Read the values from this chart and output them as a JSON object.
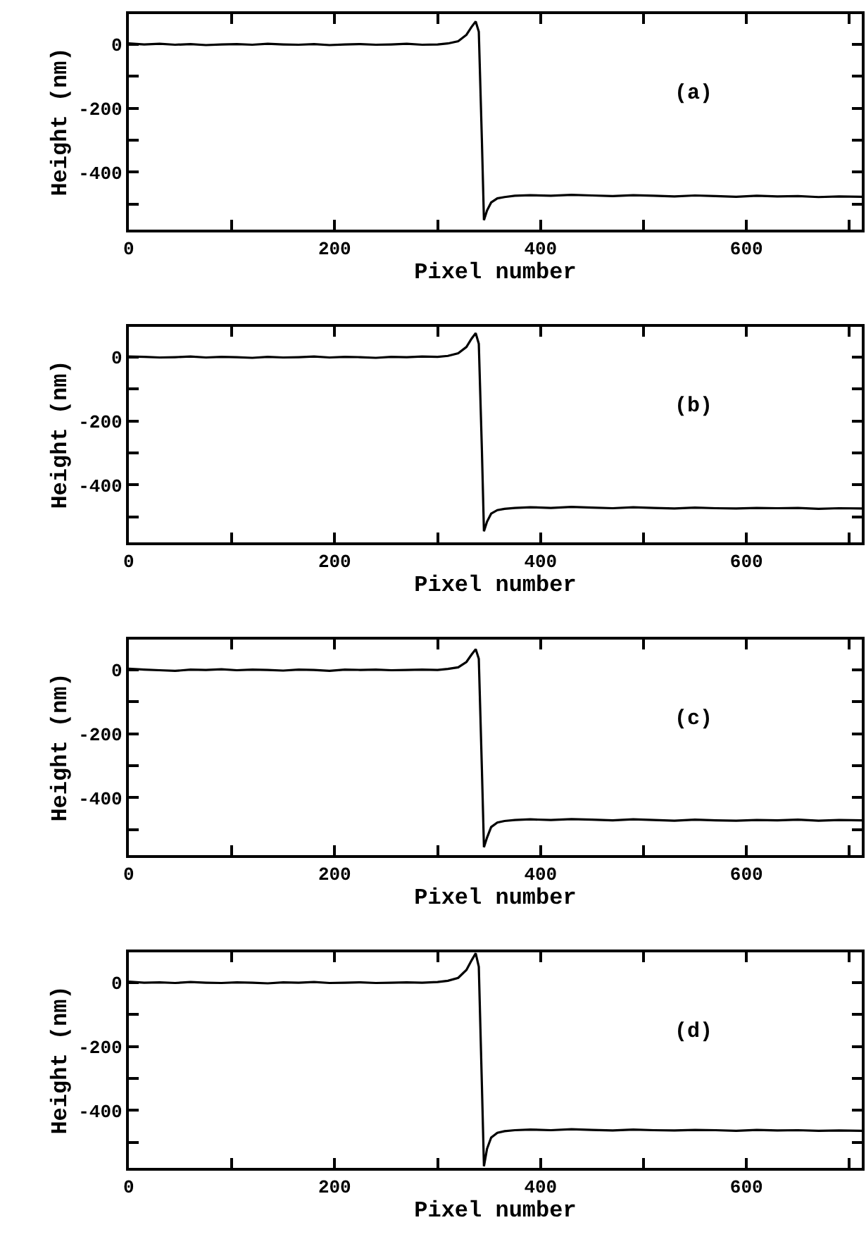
{
  "chart_data": [
    {
      "type": "line",
      "xlabel": "Pixel number",
      "ylabel": "Height (nm)",
      "annotations": [
        "(a)"
      ],
      "xlim": [
        0,
        712
      ],
      "ylim": [
        -580,
        95
      ],
      "xticks": [
        0,
        {
          "value": 100,
          "label": null
        },
        200,
        {
          "value": 300,
          "label": null
        },
        400,
        {
          "value": 500,
          "label": null
        },
        600,
        {
          "value": 700,
          "label": null
        }
      ],
      "yticks": [
        0,
        {
          "value": -100,
          "label": null
        },
        -200,
        {
          "value": -300,
          "label": null
        },
        -400,
        {
          "value": -500,
          "label": null
        }
      ],
      "x": [
        0,
        15,
        30,
        45,
        60,
        75,
        90,
        105,
        120,
        135,
        150,
        165,
        180,
        195,
        210,
        225,
        240,
        255,
        270,
        285,
        300,
        310,
        320,
        328,
        333,
        337,
        340,
        343,
        345,
        348,
        352,
        358,
        365,
        375,
        390,
        410,
        430,
        450,
        470,
        490,
        510,
        530,
        550,
        570,
        590,
        610,
        630,
        650,
        670,
        690,
        712
      ],
      "series": [
        {
          "color": "#000000",
          "values": [
            3,
            0,
            2,
            -1,
            1,
            -2,
            0,
            1,
            -1,
            2,
            0,
            -1,
            1,
            -2,
            0,
            1,
            -1,
            0,
            2,
            -1,
            0,
            3,
            10,
            30,
            55,
            72,
            40,
            -300,
            -550,
            -520,
            -495,
            -482,
            -478,
            -474,
            -472,
            -474,
            -471,
            -473,
            -475,
            -472,
            -474,
            -476,
            -473,
            -475,
            -477,
            -474,
            -476,
            -475,
            -478,
            -476,
            -477
          ]
        }
      ]
    },
    {
      "type": "line",
      "xlabel": "Pixel number",
      "ylabel": "Height (nm)",
      "annotations": [
        "(b)"
      ],
      "xlim": [
        0,
        712
      ],
      "ylim": [
        -580,
        95
      ],
      "xticks": [
        0,
        {
          "value": 100,
          "label": null
        },
        200,
        {
          "value": 300,
          "label": null
        },
        400,
        {
          "value": 500,
          "label": null
        },
        600,
        {
          "value": 700,
          "label": null
        }
      ],
      "yticks": [
        0,
        {
          "value": -100,
          "label": null
        },
        -200,
        {
          "value": -300,
          "label": null
        },
        -400,
        {
          "value": -500,
          "label": null
        }
      ],
      "x": [
        0,
        15,
        30,
        45,
        60,
        75,
        90,
        105,
        120,
        135,
        150,
        165,
        180,
        195,
        210,
        225,
        240,
        255,
        270,
        285,
        300,
        310,
        320,
        328,
        333,
        337,
        340,
        343,
        345,
        348,
        352,
        358,
        365,
        375,
        390,
        410,
        430,
        450,
        470,
        490,
        510,
        530,
        550,
        570,
        590,
        610,
        630,
        650,
        670,
        690,
        712
      ],
      "series": [
        {
          "color": "#000000",
          "values": [
            2,
            1,
            -1,
            0,
            2,
            -1,
            1,
            0,
            -2,
            1,
            -1,
            0,
            2,
            -1,
            1,
            0,
            -2,
            1,
            0,
            2,
            1,
            4,
            12,
            32,
            58,
            75,
            42,
            -290,
            -545,
            -515,
            -490,
            -479,
            -475,
            -472,
            -470,
            -472,
            -469,
            -471,
            -473,
            -470,
            -472,
            -474,
            -471,
            -473,
            -474,
            -472,
            -473,
            -472,
            -475,
            -473,
            -474
          ]
        }
      ]
    },
    {
      "type": "line",
      "xlabel": "Pixel number",
      "ylabel": "Height (nm)",
      "annotations": [
        "(c)"
      ],
      "xlim": [
        0,
        712
      ],
      "ylim": [
        -580,
        95
      ],
      "xticks": [
        0,
        {
          "value": 100,
          "label": null
        },
        200,
        {
          "value": 300,
          "label": null
        },
        400,
        {
          "value": 500,
          "label": null
        },
        600,
        {
          "value": 700,
          "label": null
        }
      ],
      "yticks": [
        0,
        {
          "value": -100,
          "label": null
        },
        -200,
        {
          "value": -300,
          "label": null
        },
        -400,
        {
          "value": -500,
          "label": null
        }
      ],
      "x": [
        0,
        15,
        30,
        45,
        60,
        75,
        90,
        105,
        120,
        135,
        150,
        165,
        180,
        195,
        210,
        225,
        240,
        255,
        270,
        285,
        300,
        310,
        320,
        328,
        333,
        337,
        340,
        343,
        345,
        348,
        352,
        358,
        365,
        375,
        390,
        410,
        430,
        450,
        470,
        490,
        510,
        530,
        550,
        570,
        590,
        610,
        630,
        650,
        670,
        690,
        712
      ],
      "series": [
        {
          "color": "#000000",
          "values": [
            4,
            1,
            -1,
            -3,
            1,
            0,
            2,
            -1,
            1,
            0,
            -2,
            1,
            0,
            -3,
            1,
            0,
            1,
            -1,
            0,
            1,
            0,
            3,
            8,
            25,
            48,
            65,
            35,
            -310,
            -555,
            -525,
            -492,
            -478,
            -473,
            -470,
            -468,
            -470,
            -467,
            -469,
            -471,
            -468,
            -470,
            -472,
            -469,
            -471,
            -472,
            -470,
            -471,
            -469,
            -472,
            -470,
            -471
          ]
        }
      ]
    },
    {
      "type": "line",
      "xlabel": "Pixel number",
      "ylabel": "Height (nm)",
      "annotations": [
        "(d)"
      ],
      "xlim": [
        0,
        712
      ],
      "ylim": [
        -580,
        95
      ],
      "xticks": [
        0,
        {
          "value": 100,
          "label": null
        },
        200,
        {
          "value": 300,
          "label": null
        },
        400,
        {
          "value": 500,
          "label": null
        },
        600,
        {
          "value": 700,
          "label": null
        }
      ],
      "yticks": [
        0,
        {
          "value": -100,
          "label": null
        },
        -200,
        {
          "value": -300,
          "label": null
        },
        -400,
        {
          "value": -500,
          "label": null
        }
      ],
      "x": [
        0,
        15,
        30,
        45,
        60,
        75,
        90,
        105,
        120,
        135,
        150,
        165,
        180,
        195,
        210,
        225,
        240,
        255,
        270,
        285,
        300,
        310,
        320,
        328,
        333,
        337,
        340,
        343,
        345,
        348,
        352,
        358,
        365,
        375,
        390,
        410,
        430,
        450,
        470,
        490,
        510,
        530,
        550,
        570,
        590,
        610,
        630,
        650,
        670,
        690,
        712
      ],
      "series": [
        {
          "color": "#000000",
          "values": [
            3,
            0,
            1,
            -1,
            2,
            0,
            -1,
            1,
            0,
            -2,
            1,
            0,
            2,
            -1,
            0,
            1,
            -1,
            0,
            1,
            0,
            2,
            6,
            15,
            40,
            70,
            92,
            50,
            -320,
            -575,
            -520,
            -485,
            -470,
            -465,
            -462,
            -460,
            -462,
            -459,
            -461,
            -463,
            -460,
            -462,
            -463,
            -461,
            -462,
            -464,
            -461,
            -463,
            -462,
            -464,
            -463,
            -464
          ]
        }
      ]
    }
  ]
}
